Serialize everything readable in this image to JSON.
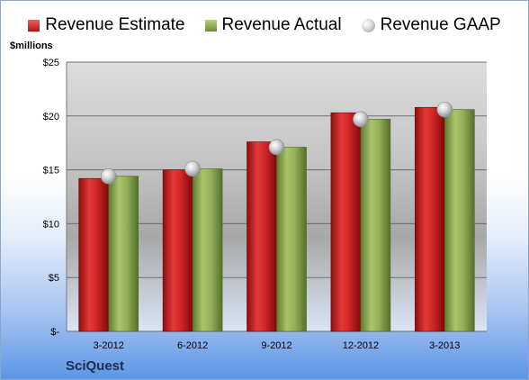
{
  "legend": {
    "estimate": "Revenue Estimate",
    "actual": "Revenue Actual",
    "gaap": "Revenue GAAP"
  },
  "unit_label": "$millions",
  "company": "SciQuest",
  "colors": {
    "estimate": "#c81e1e",
    "actual": "#8fae52",
    "gaap": "#c8c8c8"
  },
  "chart_data": {
    "type": "bar",
    "categories": [
      "3-2012",
      "6-2012",
      "9-2012",
      "12-2012",
      "3-2013"
    ],
    "series": [
      {
        "name": "Revenue Estimate",
        "values": [
          14.2,
          15.0,
          17.6,
          20.3,
          20.8
        ]
      },
      {
        "name": "Revenue Actual",
        "values": [
          14.4,
          15.1,
          17.1,
          19.7,
          20.6
        ]
      },
      {
        "name": "Revenue GAAP",
        "values": [
          14.4,
          15.1,
          17.1,
          19.7,
          20.6
        ]
      }
    ],
    "ylabel": "$millions",
    "ylim": [
      0,
      25
    ],
    "yticks": [
      0,
      5,
      10,
      15,
      20,
      25
    ],
    "ytick_labels": [
      "$-",
      "$5",
      "$10",
      "$15",
      "$20",
      "$25"
    ],
    "grid": true,
    "legend_position": "top"
  }
}
